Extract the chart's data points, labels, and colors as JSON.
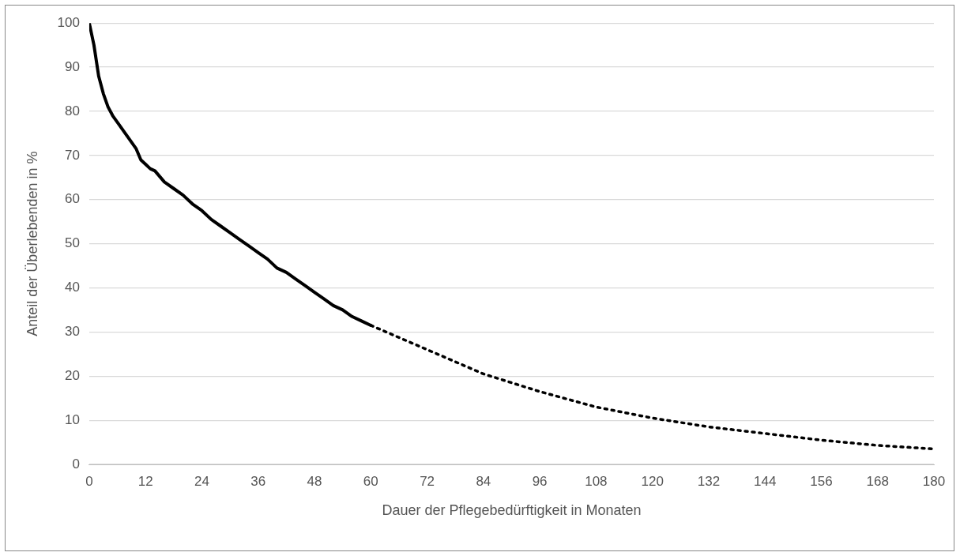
{
  "chart_data": {
    "type": "line",
    "xlabel": "Dauer der Pflegebedürftigkeit in Monaten",
    "ylabel": "Anteil der Überlebenden in %",
    "xlim": [
      0,
      180
    ],
    "xticks": [
      0,
      12,
      24,
      36,
      48,
      60,
      72,
      84,
      96,
      108,
      120,
      132,
      144,
      156,
      168,
      180
    ],
    "ylim": [
      0,
      100
    ],
    "yticks": [
      0,
      10,
      20,
      30,
      40,
      50,
      60,
      70,
      80,
      90,
      100
    ],
    "grid": "y",
    "legend": false,
    "marker": "none",
    "series": [
      {
        "color": "#000000",
        "line_style": "solid",
        "x": [
          0,
          1,
          2,
          3,
          4,
          5,
          6,
          8,
          10,
          11,
          12,
          13,
          14,
          16,
          18,
          20,
          22,
          24,
          26,
          28,
          30,
          32,
          34,
          36,
          38,
          40,
          42,
          44,
          46,
          48,
          50,
          52,
          54,
          56,
          58,
          60
        ],
        "values": [
          100,
          95,
          88,
          84,
          81,
          79,
          77.5,
          74.5,
          71.5,
          69,
          68,
          67,
          66.5,
          64,
          62.5,
          61,
          59,
          57.5,
          55.5,
          54,
          52.5,
          51,
          49.5,
          48,
          46.5,
          44.5,
          43.5,
          42,
          40.5,
          39,
          37.5,
          36,
          35,
          33.5,
          32.5,
          31.5
        ]
      },
      {
        "color": "#000000",
        "line_style": "dotted",
        "x": [
          60,
          72,
          84,
          96,
          108,
          120,
          132,
          144,
          156,
          168,
          180
        ],
        "values": [
          31.5,
          26,
          20.5,
          16.5,
          13,
          10.5,
          8.5,
          7,
          5.5,
          4.3,
          3.5
        ]
      }
    ]
  }
}
